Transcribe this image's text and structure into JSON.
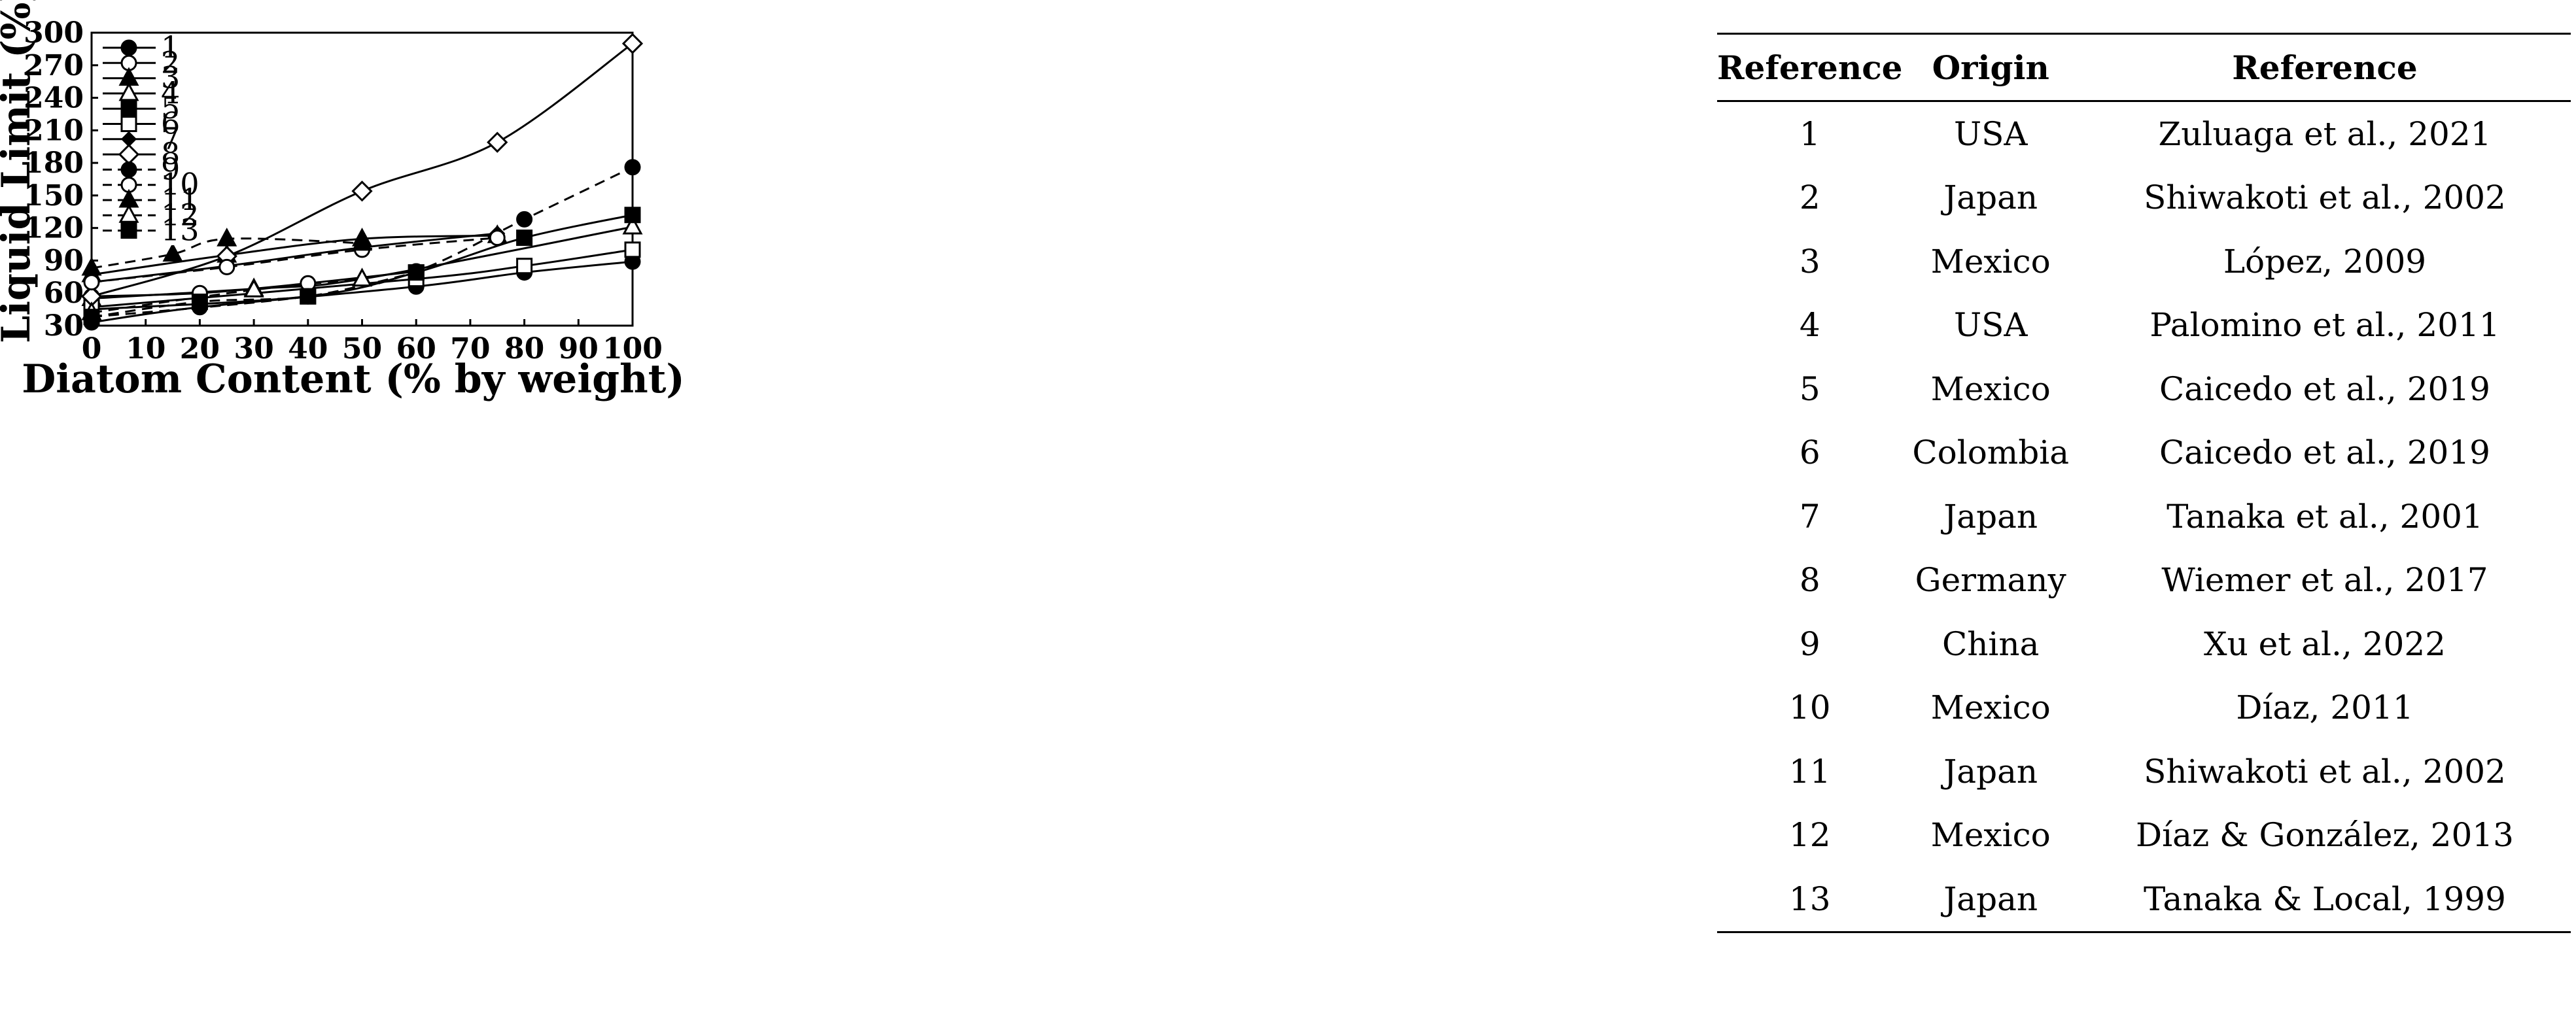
{
  "chart_data": {
    "type": "line",
    "xlabel": "Diatom Content (% by weight)",
    "ylabel": "Liquid Limit (%)",
    "xlim": [
      0,
      100
    ],
    "ylim": [
      30,
      300
    ],
    "xticks": [
      0,
      10,
      20,
      30,
      40,
      50,
      60,
      70,
      80,
      90,
      100
    ],
    "yticks": [
      30,
      60,
      90,
      120,
      150,
      180,
      210,
      240,
      270,
      300
    ],
    "legend_position": "top-left",
    "series": [
      {
        "name": "1",
        "marker": "circle-filled",
        "dash": "solid",
        "points": [
          [
            0,
            33
          ],
          [
            20,
            47
          ],
          [
            60,
            66
          ],
          [
            80,
            79
          ],
          [
            100,
            89
          ]
        ]
      },
      {
        "name": "2",
        "marker": "circle-open",
        "dash": "solid",
        "points": [
          [
            0,
            57
          ],
          [
            20,
            60
          ],
          [
            40,
            69
          ],
          [
            60,
            80
          ]
        ]
      },
      {
        "name": "3",
        "marker": "triangle-filled",
        "dash": "solid",
        "points": [
          [
            0,
            77
          ],
          [
            25,
            95
          ],
          [
            50,
            110
          ],
          [
            75,
            113
          ]
        ]
      },
      {
        "name": "4",
        "marker": "triangle-open",
        "dash": "solid",
        "points": [
          [
            0,
            55
          ],
          [
            30,
            64
          ],
          [
            50,
            73
          ],
          [
            100,
            121
          ]
        ]
      },
      {
        "name": "5",
        "marker": "square-filled",
        "dash": "solid",
        "points": [
          [
            0,
            45
          ],
          [
            40,
            57
          ],
          [
            60,
            79
          ],
          [
            80,
            111
          ],
          [
            100,
            132
          ]
        ]
      },
      {
        "name": "6",
        "marker": "square-open",
        "dash": "solid",
        "points": [
          [
            0,
            47
          ],
          [
            60,
            73
          ],
          [
            80,
            85
          ],
          [
            100,
            100
          ]
        ]
      },
      {
        "name": "7",
        "marker": "diamond-filled",
        "dash": "solid",
        "points": [
          [
            0,
            70
          ],
          [
            25,
            85
          ],
          [
            50,
            102
          ],
          [
            75,
            115
          ]
        ]
      },
      {
        "name": "8",
        "marker": "diamond-open",
        "dash": "solid",
        "points": [
          [
            0,
            57
          ],
          [
            25,
            94
          ],
          [
            50,
            154
          ],
          [
            75,
            199
          ],
          [
            100,
            290
          ]
        ]
      },
      {
        "name": "9",
        "marker": "circle-filled",
        "dash": "dashed",
        "points": [
          [
            0,
            38
          ],
          [
            40,
            57
          ],
          [
            60,
            80
          ],
          [
            80,
            128
          ],
          [
            100,
            176
          ]
        ]
      },
      {
        "name": "10",
        "marker": "circle-open",
        "dash": "dashed",
        "points": [
          [
            0,
            70
          ],
          [
            25,
            84
          ],
          [
            50,
            100
          ],
          [
            75,
            111
          ]
        ]
      },
      {
        "name": "11",
        "marker": "triangle-filled",
        "dash": "dashed",
        "points": [
          [
            0,
            83
          ],
          [
            15,
            96
          ],
          [
            25,
            110
          ],
          [
            50,
            106
          ]
        ]
      },
      {
        "name": "12",
        "marker": "triangle-open",
        "dash": "dashed",
        "points": [
          [
            0,
            42
          ],
          [
            30,
            63
          ],
          [
            50,
            73
          ]
        ]
      },
      {
        "name": "13",
        "marker": "square-filled",
        "dash": "dashed",
        "points": [
          [
            0,
            38
          ],
          [
            20,
            52
          ],
          [
            40,
            57
          ],
          [
            60,
            79
          ]
        ]
      }
    ]
  },
  "table": {
    "headers": [
      "Reference",
      "Origin",
      "Reference"
    ],
    "rows": [
      [
        "1",
        "USA",
        "Zuluaga et al., 2021"
      ],
      [
        "2",
        "Japan",
        "Shiwakoti et al., 2002"
      ],
      [
        "3",
        "Mexico",
        "López, 2009"
      ],
      [
        "4",
        "USA",
        "Palomino et al., 2011"
      ],
      [
        "5",
        "Mexico",
        "Caicedo et al., 2019"
      ],
      [
        "6",
        "Colombia",
        "Caicedo et al., 2019"
      ],
      [
        "7",
        "Japan",
        "Tanaka et al., 2001"
      ],
      [
        "8",
        "Germany",
        "Wiemer et al., 2017"
      ],
      [
        "9",
        "China",
        "Xu et al., 2022"
      ],
      [
        "10",
        "Mexico",
        "Díaz, 2011"
      ],
      [
        "11",
        "Japan",
        "Shiwakoti et al., 2002"
      ],
      [
        "12",
        "Mexico",
        "Díaz & González, 2013"
      ],
      [
        "13",
        "Japan",
        "Tanaka & Local, 1999"
      ]
    ]
  }
}
